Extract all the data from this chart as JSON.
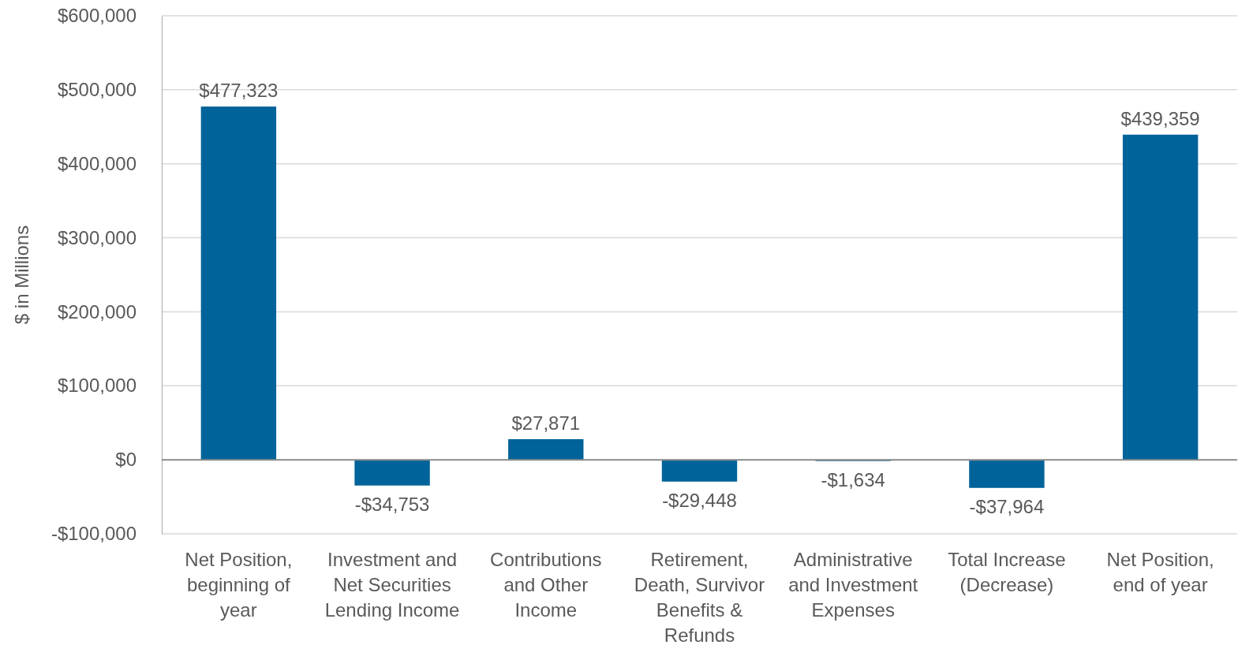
{
  "chart_data": {
    "type": "bar",
    "ylabel": "$ in Millions",
    "categories": [
      "Net Position, beginning of year",
      "Investment and Net Securities Lending Income",
      "Contributions and Other Income",
      "Retirement, Death, Survivor Benefits & Refunds",
      "Administrative and Investment Expenses",
      "Total Increase (Decrease)",
      "Net Position, end of year"
    ],
    "values": [
      477323,
      -34753,
      27871,
      -29448,
      -1634,
      -37964,
      439359
    ],
    "value_labels": [
      "$477,323",
      "-$34,753",
      "$27,871",
      "-$29,448",
      "-$1,634",
      "-$37,964",
      "$439,359"
    ],
    "color": "#006399",
    "ylim": [
      -100000,
      600000
    ],
    "yticks": [
      {
        "value": -100000,
        "label": "-$100,000"
      },
      {
        "value": 0,
        "label": "$0"
      },
      {
        "value": 100000,
        "label": "$100,000"
      },
      {
        "value": 200000,
        "label": "$200,000"
      },
      {
        "value": 300000,
        "label": "$300,000"
      },
      {
        "value": 400000,
        "label": "$400,000"
      },
      {
        "value": 500000,
        "label": "$500,000"
      },
      {
        "value": 600000,
        "label": "$600,000"
      }
    ],
    "grid": "y"
  }
}
